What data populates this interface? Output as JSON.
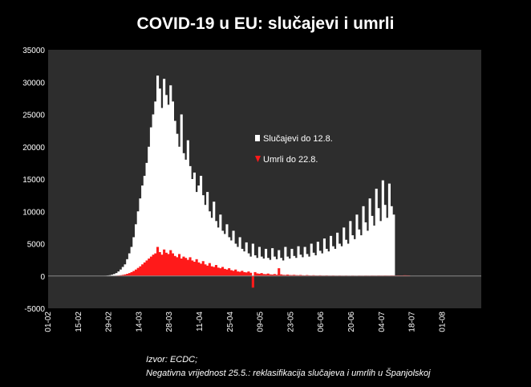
{
  "title": "COVID-19 u EU: slučajevi i umrli",
  "source": {
    "line1": "Izvor: ECDC;",
    "line2": "Negativna vrijednost 25.5.: reklasifikacija slučajeva i umrlih u Španjolskoj"
  },
  "colors": {
    "cases": "#ffffff",
    "deaths": "#ff1a1a",
    "plot_bg": "#2d2d2d",
    "page_bg": "#000000"
  },
  "chart_data": {
    "type": "bar",
    "title": "COVID-19 u EU: slučajevi i umrli",
    "ylim": [
      -5000,
      35000
    ],
    "yticks": [
      "35000",
      "30000",
      "25000",
      "20000",
      "15000",
      "10000",
      "5000",
      "0",
      "-5000"
    ],
    "xticks": [
      "01-02",
      "15-02",
      "29-02",
      "14-03",
      "28-03",
      "11-04",
      "25-04",
      "09-05",
      "23-05",
      "06-06",
      "20-06",
      "04-07",
      "18-07",
      "01-08"
    ],
    "legend": {
      "position": "center-right",
      "entries": [
        "Slučajevi do 12.8.",
        "Umrli do 22.8."
      ]
    },
    "grid": false,
    "series": [
      {
        "name": "Slučajevi do 12.8.",
        "color": "#ffffff",
        "x_start": "01-02",
        "x_end": "12-08",
        "values": [
          0,
          0,
          0,
          0,
          0,
          0,
          0,
          0,
          0,
          0,
          0,
          0,
          0,
          0,
          0,
          0,
          0,
          0,
          0,
          0,
          0,
          0,
          3,
          8,
          12,
          25,
          40,
          80,
          120,
          200,
          300,
          450,
          700,
          1000,
          1400,
          1800,
          2600,
          3500,
          4500,
          6000,
          8000,
          10000,
          12000,
          14000,
          15500,
          17500,
          20000,
          23000,
          25000,
          27000,
          31000,
          29000,
          26000,
          30500,
          28000,
          26500,
          29500,
          27000,
          24000,
          22000,
          20000,
          25000,
          19000,
          18000,
          21000,
          17000,
          15000,
          16000,
          13000,
          14000,
          15500,
          12500,
          11000,
          13000,
          10000,
          9000,
          11500,
          8500,
          7500,
          9500,
          7000,
          6500,
          8000,
          6000,
          5500,
          7000,
          5000,
          4500,
          6000,
          4200,
          3800,
          5200,
          3500,
          3000,
          5000,
          3200,
          2800,
          4500,
          3000,
          2700,
          4200,
          2800,
          2500,
          4300,
          3000,
          2600,
          4000,
          2800,
          2400,
          4500,
          3000,
          2700,
          4200,
          3100,
          2800,
          4600,
          3300,
          2900,
          4500,
          3400,
          3000,
          5000,
          3600,
          3200,
          5300,
          3900,
          3500,
          5800,
          4200,
          3800,
          6200,
          4600,
          4200,
          6700,
          5000,
          4600,
          7500,
          5600,
          5000,
          8500,
          6300,
          5700,
          9500,
          7200,
          6300,
          10800,
          8300,
          7000,
          12000,
          9300,
          7800,
          13500,
          10500,
          8500,
          14800,
          11000,
          9000,
          14300,
          10800,
          9500
        ]
      },
      {
        "name": "Umrli do 22.8.",
        "color": "#ff1a1a",
        "x_start": "01-02",
        "x_end": "22-08",
        "values": [
          0,
          0,
          0,
          0,
          0,
          0,
          0,
          0,
          0,
          0,
          0,
          0,
          0,
          0,
          0,
          0,
          0,
          0,
          0,
          0,
          0,
          0,
          0,
          1,
          2,
          3,
          5,
          8,
          12,
          20,
          30,
          50,
          80,
          120,
          170,
          240,
          330,
          450,
          600,
          780,
          1000,
          1250,
          1500,
          1800,
          2100,
          2400,
          2700,
          3000,
          3300,
          3500,
          4500,
          3700,
          3300,
          4100,
          3600,
          3400,
          4000,
          3500,
          3100,
          2900,
          3400,
          2700,
          3000,
          2800,
          2500,
          2900,
          2400,
          2200,
          2600,
          2100,
          1900,
          2300,
          1800,
          1600,
          2000,
          1500,
          1400,
          1700,
          1300,
          1200,
          1400,
          1100,
          1000,
          1200,
          900,
          800,
          1000,
          700,
          650,
          800,
          600,
          550,
          700,
          500,
          -1800,
          600,
          400,
          350,
          450,
          300,
          280,
          380,
          250,
          220,
          300,
          200,
          1200,
          250,
          180,
          160,
          220,
          150,
          140,
          180,
          130,
          120,
          160,
          110,
          100,
          140,
          100,
          90,
          120,
          90,
          80,
          110,
          80,
          75,
          100,
          70,
          65,
          90,
          65,
          60,
          80,
          60,
          55,
          75,
          55,
          50,
          70,
          55,
          50,
          70,
          60,
          55,
          75,
          65,
          60,
          80,
          70,
          65,
          85,
          75,
          70,
          90,
          80,
          75,
          95,
          85,
          80,
          100,
          90,
          85,
          110,
          100,
          95
        ]
      }
    ]
  }
}
